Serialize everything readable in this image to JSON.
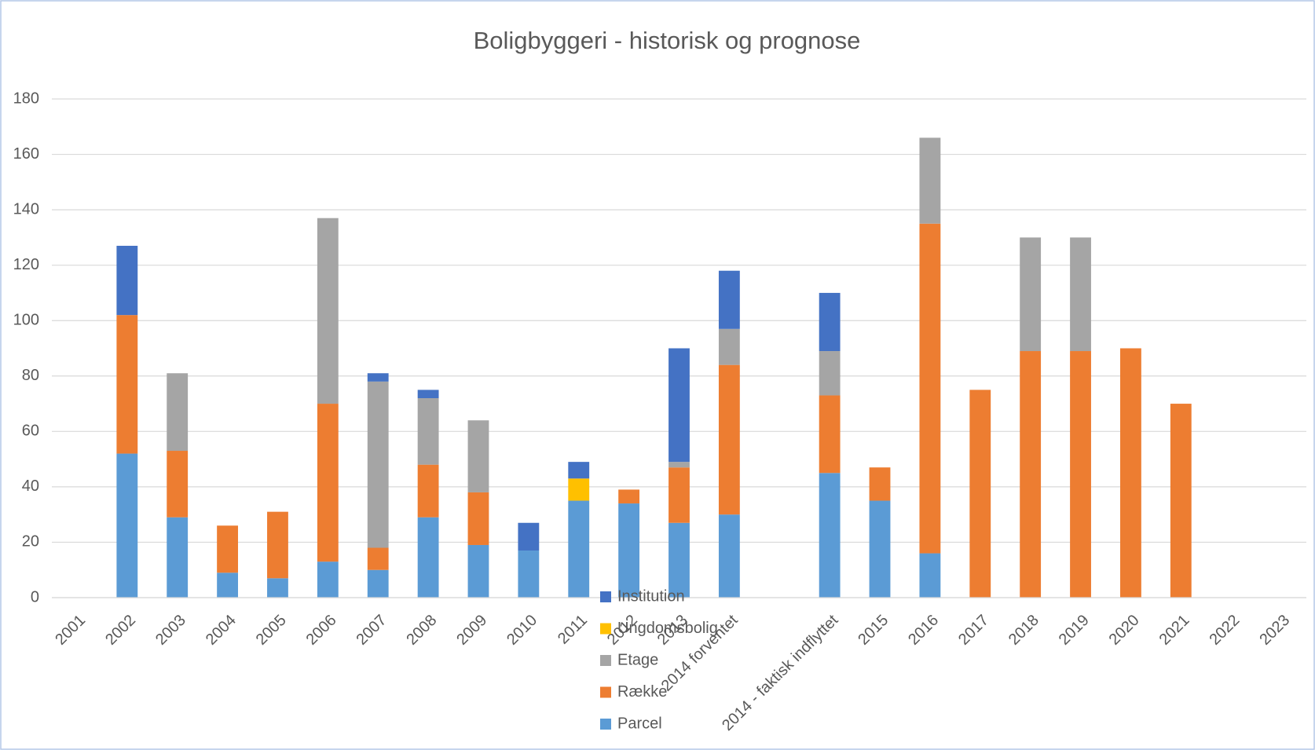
{
  "chart_data": {
    "type": "stacked_bar",
    "title": "Boligbyggeri - historisk og prognose",
    "categories": [
      "2001",
      "2002",
      "2003",
      "2004",
      "2005",
      "2006",
      "2007",
      "2008",
      "2009",
      "2010",
      "2011",
      "2012",
      "2013",
      "2014 forventet",
      null,
      "2014 - faktisk indflyttet",
      "2015",
      "2016",
      "2017",
      "2018",
      "2019",
      "2020",
      "2021",
      "2022",
      "2023"
    ],
    "series": [
      {
        "name": "Parcel",
        "color": "#5b9bd5",
        "values": [
          0,
          52,
          29,
          9,
          7,
          13,
          10,
          29,
          19,
          17,
          35,
          34,
          27,
          30,
          0,
          45,
          35,
          16,
          0,
          0,
          0,
          0,
          0,
          0,
          0
        ]
      },
      {
        "name": "Række",
        "color": "#ed7d31",
        "values": [
          0,
          50,
          24,
          17,
          24,
          57,
          8,
          19,
          19,
          0,
          0,
          5,
          20,
          54,
          0,
          28,
          12,
          119,
          75,
          89,
          89,
          90,
          70,
          0,
          0
        ]
      },
      {
        "name": "Etage",
        "color": "#a5a5a5",
        "values": [
          0,
          0,
          28,
          0,
          0,
          67,
          60,
          24,
          26,
          0,
          0,
          0,
          2,
          13,
          0,
          16,
          0,
          31,
          0,
          41,
          41,
          0,
          0,
          0,
          0
        ]
      },
      {
        "name": "Ungdomsbolig",
        "color": "#ffc000",
        "values": [
          0,
          0,
          0,
          0,
          0,
          0,
          0,
          0,
          0,
          0,
          8,
          0,
          0,
          0,
          0,
          0,
          0,
          0,
          0,
          0,
          0,
          0,
          0,
          0,
          0
        ]
      },
      {
        "name": "Institution",
        "color": "#4472c4",
        "values": [
          0,
          25,
          0,
          0,
          0,
          0,
          3,
          3,
          0,
          10,
          6,
          0,
          41,
          21,
          0,
          21,
          0,
          0,
          0,
          0,
          0,
          0,
          0,
          0,
          0
        ]
      }
    ],
    "ylim": [
      0,
      180
    ],
    "yticks": [
      0,
      20,
      40,
      60,
      80,
      100,
      120,
      140,
      160,
      180
    ],
    "grid": true
  }
}
